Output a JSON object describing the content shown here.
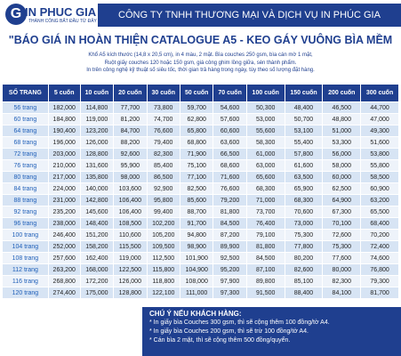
{
  "header": {
    "logo": "IN PHUC GIA",
    "slogan": "THÀNH CÔNG BẮT ĐẦU TỪ ĐÂY",
    "company": "CÔNG TY TNHH THƯƠNG MẠI VÀ DỊCH VỤ IN PHÚC GIA"
  },
  "title": "\"BÁO GIÁ IN HOÀN THIỆN CATALOGUE A5 - KEO GÁY VUÔNG BÌA MỀM",
  "notes": [
    "Khổ A5 kích thước (14,8 x 20,5 cm), in 4 màu, 2 mặt. Bìa couches 250 gsm, bìa cán mờ 1 mặt,",
    "Ruột giấy couches 120 hoặc 150 gsm, giá công ghim lồng giữa, sén thành phẩm.",
    "In trên công nghệ kỹ thuật số siêu tốc, thời gian trả hàng trong ngày, tùy theo số lượng đặt hàng."
  ],
  "table": {
    "columns": [
      "SỐ TRANG",
      "5 cuốn",
      "10 cuốn",
      "20 cuốn",
      "30 cuốn",
      "50 cuốn",
      "70 cuốn",
      "100 cuốn",
      "150 cuốn",
      "200 cuốn",
      "300 cuốn"
    ],
    "rows": [
      [
        "56 trang",
        "182,000",
        "114,800",
        "77,700",
        "73,800",
        "59,700",
        "54,600",
        "50,300",
        "48,400",
        "46,500",
        "44,700"
      ],
      [
        "60 trang",
        "184,800",
        "119,000",
        "81,200",
        "74,700",
        "62,800",
        "57,600",
        "53,000",
        "50,700",
        "48,800",
        "47,000"
      ],
      [
        "64 trang",
        "190,400",
        "123,200",
        "84,700",
        "76,600",
        "65,800",
        "60,600",
        "55,600",
        "53,100",
        "51,000",
        "49,300"
      ],
      [
        "68 trang",
        "196,000",
        "126,000",
        "88,200",
        "79,400",
        "68,800",
        "63,600",
        "58,300",
        "55,400",
        "53,300",
        "51,600"
      ],
      [
        "72 trang",
        "203,000",
        "128,800",
        "92,600",
        "82,300",
        "71,900",
        "66,500",
        "61,000",
        "57,800",
        "56,000",
        "53,800"
      ],
      [
        "76 trang",
        "210,000",
        "131,600",
        "95,900",
        "85,400",
        "75,100",
        "68,600",
        "63,000",
        "61,600",
        "58,000",
        "55,800"
      ],
      [
        "80 trang",
        "217,000",
        "135,800",
        "98,000",
        "86,500",
        "77,100",
        "71,600",
        "65,600",
        "63,500",
        "60,000",
        "58,500"
      ],
      [
        "84 trang",
        "224,000",
        "140,000",
        "103,600",
        "92,900",
        "82,500",
        "76,600",
        "68,300",
        "65,900",
        "62,500",
        "60,900"
      ],
      [
        "88 trang",
        "231,000",
        "142,800",
        "106,400",
        "95,800",
        "85,600",
        "79,200",
        "71,000",
        "68,300",
        "64,900",
        "63,200"
      ],
      [
        "92 trang",
        "235,200",
        "145,600",
        "106,400",
        "99,400",
        "88,700",
        "81,800",
        "73,700",
        "70,600",
        "67,300",
        "65,500"
      ],
      [
        "96 trang",
        "238,000",
        "148,400",
        "108,500",
        "102,200",
        "91,700",
        "84,500",
        "76,400",
        "73,000",
        "70,100",
        "68,400"
      ],
      [
        "100 trang",
        "246,400",
        "151,200",
        "110,600",
        "105,200",
        "94,800",
        "87,200",
        "79,100",
        "75,300",
        "72,600",
        "70,200"
      ],
      [
        "104 trang",
        "252,000",
        "158,200",
        "115,500",
        "109,500",
        "98,900",
        "89,900",
        "81,800",
        "77,800",
        "75,300",
        "72,400"
      ],
      [
        "108 trang",
        "257,600",
        "162,400",
        "119,000",
        "112,500",
        "101,900",
        "92,500",
        "84,500",
        "80,200",
        "77,600",
        "74,600"
      ],
      [
        "112 trang",
        "263,200",
        "168,000",
        "122,500",
        "115,800",
        "104,900",
        "95,200",
        "87,100",
        "82,600",
        "80,000",
        "76,800"
      ],
      [
        "116 trang",
        "268,800",
        "172,200",
        "126,000",
        "118,800",
        "108,000",
        "97,900",
        "89,800",
        "85,100",
        "82,300",
        "79,300"
      ],
      [
        "120 trang",
        "274,400",
        "175,000",
        "128,800",
        "122,100",
        "111,000",
        "97,300",
        "91,500",
        "88,400",
        "84,100",
        "81,700"
      ]
    ]
  },
  "footer": {
    "heading": "CHÚ Ý NẾU KHÁCH HÀNG:",
    "lines": [
      "* In giấy bìa Couches 300 gsm, thì sẽ cộng thêm 100 đồng/tờ A4.",
      "* In giấy bìa Couches 200 gsm, thì sẽ trừ 100 đồng/tờ A4.",
      "* Cán bìa 2 mặt, thì sẽ cộng thêm 500 đồng/quyển."
    ]
  }
}
